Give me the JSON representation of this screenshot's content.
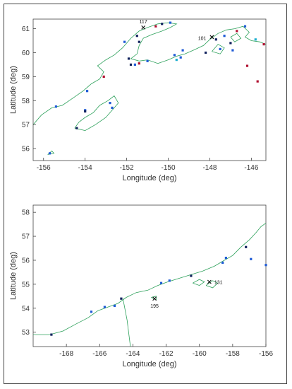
{
  "colors": {
    "coastline": "#2ca05a",
    "station": "#1f5bd6",
    "dark_station": "#12235e",
    "red_station": "#b01030",
    "cyan_station": "#1fb0d0",
    "marker": "#111111"
  },
  "maps": [
    {
      "xlabel": "Longitude (deg)",
      "ylabel": "Latitude (deg)",
      "xlim": [
        -156.5,
        -145.3
      ],
      "ylim": [
        55.5,
        61.4
      ],
      "xticks": [
        -156,
        -154,
        -152,
        -150,
        -148,
        -146
      ],
      "yticks": [
        56,
        57,
        58,
        59,
        60,
        61
      ],
      "markers": [
        {
          "label": "117",
          "lon": -151.2,
          "lat": 61.05
        },
        {
          "label": "101",
          "lon": -147.9,
          "lat": 60.65
        }
      ],
      "stations": [
        {
          "lon": -155.7,
          "lat": 55.8,
          "c": "station"
        },
        {
          "lon": -155.4,
          "lat": 57.75,
          "c": "station"
        },
        {
          "lon": -154.4,
          "lat": 56.85,
          "c": "dark_station"
        },
        {
          "lon": -154.0,
          "lat": 57.6,
          "c": "station"
        },
        {
          "lon": -154.0,
          "lat": 57.55,
          "c": "dark_station"
        },
        {
          "lon": -153.9,
          "lat": 58.4,
          "c": "station"
        },
        {
          "lon": -153.1,
          "lat": 59.0,
          "c": "red_station"
        },
        {
          "lon": -152.8,
          "lat": 57.9,
          "c": "station"
        },
        {
          "lon": -152.7,
          "lat": 57.7,
          "c": "station"
        },
        {
          "lon": -152.1,
          "lat": 60.45,
          "c": "station"
        },
        {
          "lon": -151.9,
          "lat": 59.75,
          "c": "dark_station"
        },
        {
          "lon": -151.8,
          "lat": 59.5,
          "c": "dark_station"
        },
        {
          "lon": -151.6,
          "lat": 59.5,
          "c": "station"
        },
        {
          "lon": -151.4,
          "lat": 59.55,
          "c": "red_station"
        },
        {
          "lon": -151.5,
          "lat": 60.7,
          "c": "dark_station"
        },
        {
          "lon": -151.4,
          "lat": 60.45,
          "c": "dark_station"
        },
        {
          "lon": -151.0,
          "lat": 59.65,
          "c": "station"
        },
        {
          "lon": -150.6,
          "lat": 61.1,
          "c": "red_station"
        },
        {
          "lon": -150.3,
          "lat": 61.2,
          "c": "dark_station"
        },
        {
          "lon": -149.9,
          "lat": 61.25,
          "c": "station"
        },
        {
          "lon": -149.7,
          "lat": 59.9,
          "c": "station"
        },
        {
          "lon": -149.6,
          "lat": 59.7,
          "c": "cyan_station"
        },
        {
          "lon": -149.4,
          "lat": 59.8,
          "c": "station"
        },
        {
          "lon": -149.3,
          "lat": 60.1,
          "c": "station"
        },
        {
          "lon": -148.2,
          "lat": 60.0,
          "c": "dark_station"
        },
        {
          "lon": -147.7,
          "lat": 60.55,
          "c": "dark_station"
        },
        {
          "lon": -147.5,
          "lat": 60.15,
          "c": "station"
        },
        {
          "lon": -147.3,
          "lat": 60.7,
          "c": "station"
        },
        {
          "lon": -147.0,
          "lat": 60.4,
          "c": "dark_station"
        },
        {
          "lon": -146.9,
          "lat": 60.1,
          "c": "station"
        },
        {
          "lon": -146.7,
          "lat": 60.9,
          "c": "red_station"
        },
        {
          "lon": -146.3,
          "lat": 61.1,
          "c": "station"
        },
        {
          "lon": -146.2,
          "lat": 59.45,
          "c": "red_station"
        },
        {
          "lon": -145.8,
          "lat": 60.55,
          "c": "cyan_station"
        },
        {
          "lon": -145.7,
          "lat": 58.8,
          "c": "red_station"
        },
        {
          "lon": -145.4,
          "lat": 60.35,
          "c": "red_station"
        }
      ]
    },
    {
      "xlabel": "Longitude (deg)",
      "ylabel": "Latitude (deg)",
      "xlim": [
        -170.0,
        -156.0
      ],
      "ylim": [
        52.4,
        58.3
      ],
      "xticks": [
        -168,
        -166,
        -164,
        -162,
        -160,
        -158,
        -156
      ],
      "yticks": [
        53,
        54,
        55,
        56,
        57,
        58
      ],
      "markers": [
        {
          "label": "131",
          "lon": -159.4,
          "lat": 55.1
        },
        {
          "label": "195",
          "lon": -162.7,
          "lat": 54.4
        }
      ],
      "stations": [
        {
          "lon": -168.9,
          "lat": 52.9,
          "c": "dark_station"
        },
        {
          "lon": -166.5,
          "lat": 53.85,
          "c": "station"
        },
        {
          "lon": -165.7,
          "lat": 54.05,
          "c": "station"
        },
        {
          "lon": -165.1,
          "lat": 54.1,
          "c": "station"
        },
        {
          "lon": -164.7,
          "lat": 54.4,
          "c": "dark_station"
        },
        {
          "lon": -162.3,
          "lat": 55.05,
          "c": "station"
        },
        {
          "lon": -161.8,
          "lat": 55.15,
          "c": "station"
        },
        {
          "lon": -160.5,
          "lat": 55.35,
          "c": "dark_station"
        },
        {
          "lon": -158.6,
          "lat": 55.9,
          "c": "station"
        },
        {
          "lon": -158.4,
          "lat": 56.1,
          "c": "station"
        },
        {
          "lon": -157.2,
          "lat": 56.55,
          "c": "dark_station"
        },
        {
          "lon": -156.9,
          "lat": 56.05,
          "c": "station"
        },
        {
          "lon": -156.0,
          "lat": 55.8,
          "c": "station"
        }
      ]
    }
  ]
}
